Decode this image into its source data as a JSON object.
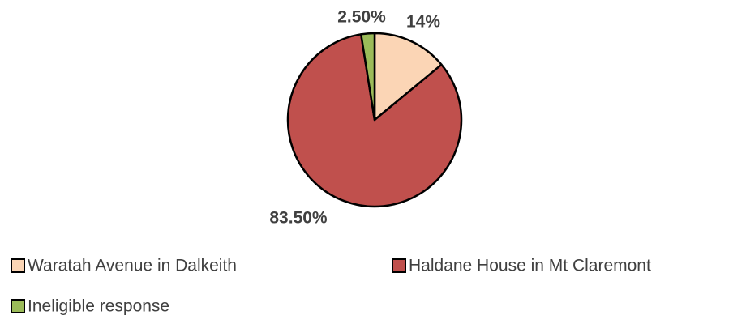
{
  "chart_data": {
    "type": "pie",
    "categories": [
      "Waratah Avenue in Dalkeith",
      "Haldane House in Mt Claremont",
      "Ineligible response"
    ],
    "values": [
      14,
      83.5,
      2.5
    ],
    "value_labels": [
      "14%",
      "83.50%",
      "2.50%"
    ],
    "colors": [
      "#FBD5B5",
      "#C0504D",
      "#9BBB59"
    ]
  }
}
